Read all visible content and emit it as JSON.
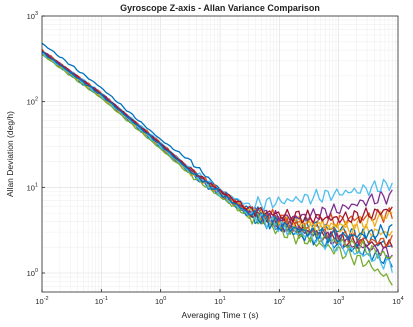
{
  "chart_data": {
    "type": "line",
    "title": "Gyroscope Z-axis - Allan Variance Comparison",
    "xlabel": "Averaging Time τ (s)",
    "ylabel": "Allan Deviation (deg/h)",
    "xscale": "log",
    "yscale": "log",
    "xlim": [
      0.01,
      10000
    ],
    "ylim": [
      0.6,
      1000
    ],
    "grid": true,
    "minor_grid": true,
    "x_ticks": [
      {
        "value": 0.01,
        "base": "10",
        "exp": "-2"
      },
      {
        "value": 0.1,
        "base": "10",
        "exp": "-1"
      },
      {
        "value": 1,
        "base": "10",
        "exp": "0"
      },
      {
        "value": 10,
        "base": "10",
        "exp": "1"
      },
      {
        "value": 100,
        "base": "10",
        "exp": "2"
      },
      {
        "value": 1000,
        "base": "10",
        "exp": "3"
      },
      {
        "value": 10000,
        "base": "10",
        "exp": "4"
      }
    ],
    "y_ticks": [
      {
        "value": 1,
        "base": "10",
        "exp": "0"
      },
      {
        "value": 10,
        "base": "10",
        "exp": "1"
      },
      {
        "value": 100,
        "base": "10",
        "exp": "2"
      },
      {
        "value": 1000,
        "base": "10",
        "exp": "3"
      }
    ],
    "series": [
      {
        "color": "#0072BD",
        "x": [
          0.01,
          0.1,
          1,
          3,
          10,
          30,
          100,
          300,
          1000,
          3000,
          8000
        ],
        "y": [
          480,
          145,
          36,
          21,
          9.5,
          5.5,
          4.3,
          3.6,
          3.2,
          2.6,
          2.0
        ]
      },
      {
        "color": "#D95319",
        "x": [
          0.01,
          0.1,
          1,
          3,
          10,
          30,
          100,
          300,
          1000,
          3000,
          8000
        ],
        "y": [
          400,
          125,
          33,
          17,
          9.0,
          5.5,
          4.3,
          3.9,
          4.1,
          4.5,
          4.9
        ]
      },
      {
        "color": "#EDB120",
        "x": [
          0.01,
          0.1,
          1,
          3,
          10,
          30,
          100,
          300,
          1000,
          3000,
          8000
        ],
        "y": [
          390,
          122,
          32,
          16.5,
          9.0,
          5.3,
          4.1,
          3.7,
          3.4,
          3.1,
          2.9
        ]
      },
      {
        "color": "#7E2F8E",
        "x": [
          0.01,
          0.1,
          1,
          3,
          10,
          30,
          100,
          300,
          1000,
          3000,
          8000
        ],
        "y": [
          380,
          120,
          31,
          16,
          8.6,
          5.1,
          4.4,
          4.6,
          5.5,
          7.0,
          8.0
        ]
      },
      {
        "color": "#77AC30",
        "x": [
          0.01,
          0.1,
          1,
          3,
          10,
          30,
          100,
          300,
          1000,
          3000,
          8000
        ],
        "y": [
          370,
          118,
          30,
          15.5,
          8.2,
          4.6,
          3.1,
          2.4,
          1.8,
          1.3,
          0.8
        ]
      },
      {
        "color": "#4DBEEE",
        "x": [
          0.01,
          0.1,
          1,
          3,
          10,
          30,
          100,
          300,
          1000,
          3000,
          8000
        ],
        "y": [
          395,
          126,
          33,
          17,
          9.2,
          6.2,
          6.8,
          7.5,
          8.5,
          9.5,
          11
        ]
      },
      {
        "color": "#A2142F",
        "x": [
          0.01,
          0.1,
          1,
          3,
          10,
          30,
          100,
          300,
          1000,
          3000,
          8000
        ],
        "y": [
          385,
          121,
          32,
          16.2,
          8.8,
          5.0,
          3.7,
          3.1,
          2.5,
          2.2,
          2.1
        ]
      },
      {
        "color": "#0072BD",
        "x": [
          0.01,
          0.1,
          1,
          3,
          10,
          30,
          100,
          300,
          1000,
          3000,
          8000
        ],
        "y": [
          360,
          112,
          29,
          15,
          8.0,
          4.8,
          3.4,
          2.7,
          2.1,
          1.8,
          1.3
        ]
      },
      {
        "color": "#D95319",
        "x": [
          0.01,
          0.1,
          1,
          3,
          10,
          30,
          100,
          300,
          1000,
          3000,
          8000
        ],
        "y": [
          375,
          116,
          30,
          15.8,
          8.5,
          5.1,
          3.8,
          3.2,
          2.7,
          2.4,
          2.3
        ]
      },
      {
        "color": "#EDB120",
        "x": [
          0.01,
          0.1,
          1,
          3,
          10,
          30,
          100,
          300,
          1000,
          3000,
          8000
        ],
        "y": [
          365,
          114,
          30,
          15.2,
          8.3,
          5.0,
          3.9,
          3.4,
          3.6,
          3.9,
          5.0
        ]
      },
      {
        "color": "#7E2F8E",
        "x": [
          0.01,
          0.1,
          1,
          3,
          10,
          30,
          100,
          300,
          1000,
          3000,
          8000
        ],
        "y": [
          392,
          124,
          32,
          16.4,
          8.9,
          5.2,
          3.8,
          3.0,
          2.4,
          2.0,
          1.7
        ]
      },
      {
        "color": "#77AC30",
        "x": [
          0.01,
          0.1,
          1,
          3,
          10,
          30,
          100,
          300,
          1000,
          3000,
          8000
        ],
        "y": [
          355,
          110,
          28,
          14.5,
          7.8,
          4.7,
          3.5,
          2.8,
          2.3,
          1.9,
          1.5
        ]
      },
      {
        "color": "#4DBEEE",
        "x": [
          0.01,
          0.1,
          1,
          3,
          10,
          30,
          100,
          300,
          1000,
          3000,
          8000
        ],
        "y": [
          372,
          117,
          30,
          15.6,
          8.4,
          4.9,
          3.5,
          2.7,
          2.0,
          1.6,
          1.2
        ]
      },
      {
        "color": "#A2142F",
        "x": [
          0.01,
          0.1,
          1,
          3,
          10,
          30,
          100,
          300,
          1000,
          3000,
          8000
        ],
        "y": [
          388,
          123,
          32,
          16.6,
          9.1,
          5.6,
          4.8,
          4.5,
          4.3,
          4.8,
          5.6
        ]
      },
      {
        "color": "#0072BD",
        "x": [
          0.01,
          0.1,
          1,
          3,
          10,
          30,
          100,
          300,
          1000,
          3000,
          8000
        ],
        "y": [
          378,
          119,
          31,
          15.9,
          8.6,
          5.0,
          3.6,
          3.0,
          2.6,
          2.8,
          3.2
        ]
      }
    ]
  }
}
